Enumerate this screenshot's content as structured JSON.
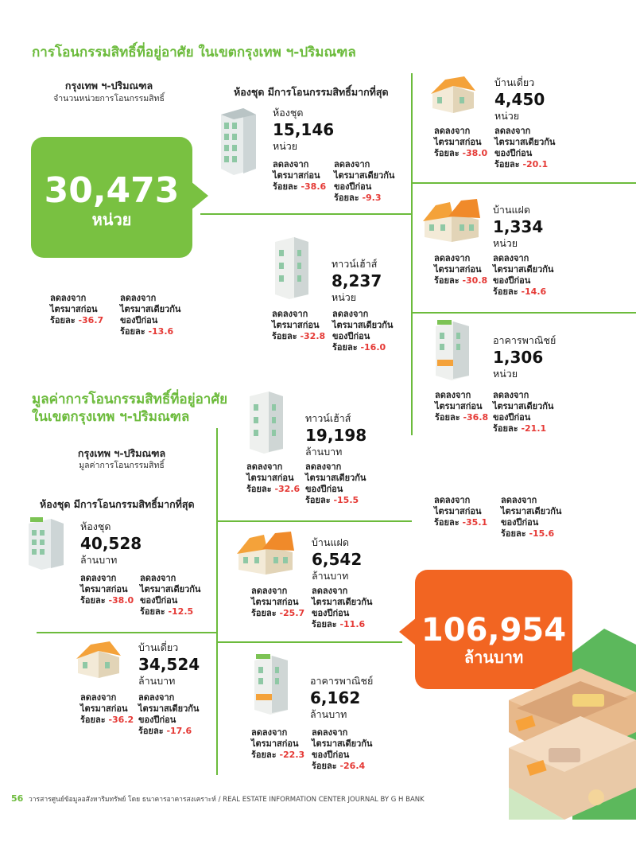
{
  "sections": {
    "units": {
      "title": "การโอนกรรมสิทธิ์ที่อยู่อาศัย ในเขตกรุงเทพ ฯ-ปริมณฑล",
      "region_label": "กรุงเทพ ฯ-ปริมณฑล",
      "region_caption": "จำนวนหน่วยการโอนกรรมสิทธิ์",
      "condo_most": "ห้องชุด มีการโอนกรรมสิทธิ์มากที่สุด",
      "total_value": "30,473",
      "total_unit": "หน่วย",
      "total_stats": {
        "a": "ลดลงจาก",
        "b": "ไตรมาสก่อน",
        "c": "ร้อยละ",
        "v1": "-36.7",
        "d": "ลดลงจาก",
        "e": "ไตรมาสเดียวกัน",
        "f": "ของปีก่อน",
        "g": "ร้อยละ",
        "v2": "-13.6"
      }
    },
    "value": {
      "title_line1": "มูลค่าการโอนกรรมสิทธิ์ที่อยู่อาศัย",
      "title_line2": "ในเขตกรุงเทพ ฯ-ปริมณฑล",
      "region_label": "กรุงเทพ ฯ-ปริมณฑล",
      "region_caption": "มูลค่าการโอนกรรมสิทธิ์",
      "condo_most": "ห้องชุด มีการโอนกรรมสิทธิ์มากที่สุด",
      "total_value": "106,954",
      "total_unit": "ล้านบาท",
      "total_stats": {
        "a": "ลดลงจาก",
        "b": "ไตรมาสก่อน",
        "c": "ร้อยละ",
        "v1": "-35.1",
        "d": "ลดลงจาก",
        "e": "ไตรมาสเดียวกัน",
        "f": "ของปีก่อน",
        "g": "ร้อยละ",
        "v2": "-15.6"
      }
    }
  },
  "labels": {
    "decline_from": "ลดลงจาก",
    "prev_quarter": "ไตรมาสก่อน",
    "same_quarter": "ไตรมาสเดียวกัน",
    "last_year": "ของปีก่อน",
    "percent": "ร้อยละ"
  },
  "unit_items": [
    {
      "type": "ห้องชุด",
      "value": "15,146",
      "unit": "หน่วย",
      "q": "-38.6",
      "y": "-9.3"
    },
    {
      "type": "บ้านเดี่ยว",
      "value": "4,450",
      "unit": "หน่วย",
      "q": "-38.0",
      "y": "-20.1"
    },
    {
      "type": "บ้านแฝด",
      "value": "1,334",
      "unit": "หน่วย",
      "q": "-30.8",
      "y": "-14.6"
    },
    {
      "type": "ทาวน์เฮ้าส์",
      "value": "8,237",
      "unit": "หน่วย",
      "q": "-32.8",
      "y": "-16.0"
    },
    {
      "type": "อาคารพาณิชย์",
      "value": "1,306",
      "unit": "หน่วย",
      "q": "-36.8",
      "y": "-21.1"
    }
  ],
  "value_items": [
    {
      "type": "ทาวน์เฮ้าส์",
      "value": "19,198",
      "unit": "ล้านบาท",
      "q": "-32.6",
      "y": "-15.5"
    },
    {
      "type": "ห้องชุด",
      "value": "40,528",
      "unit": "ล้านบาท",
      "q": "-38.0",
      "y": "-12.5"
    },
    {
      "type": "บ้านแฝด",
      "value": "6,542",
      "unit": "ล้านบาท",
      "q": "-25.7",
      "y": "-11.6"
    },
    {
      "type": "บ้านเดี่ยว",
      "value": "34,524",
      "unit": "ล้านบาท",
      "q": "-36.2",
      "y": "-17.6"
    },
    {
      "type": "อาคารพาณิชย์",
      "value": "6,162",
      "unit": "ล้านบาท",
      "q": "-22.3",
      "y": "-26.4"
    }
  ],
  "footer": {
    "page": "56",
    "text": "วารสารศูนย์ข้อมูลอสังหาริมทรัพย์ โดย ธนาคารอาคารสงเคราะห์ / REAL ESTATE INFORMATION CENTER JOURNAL BY G H BANK"
  },
  "colors": {
    "green": "#6cbb3c",
    "orange": "#f26522",
    "red": "#e53935"
  }
}
